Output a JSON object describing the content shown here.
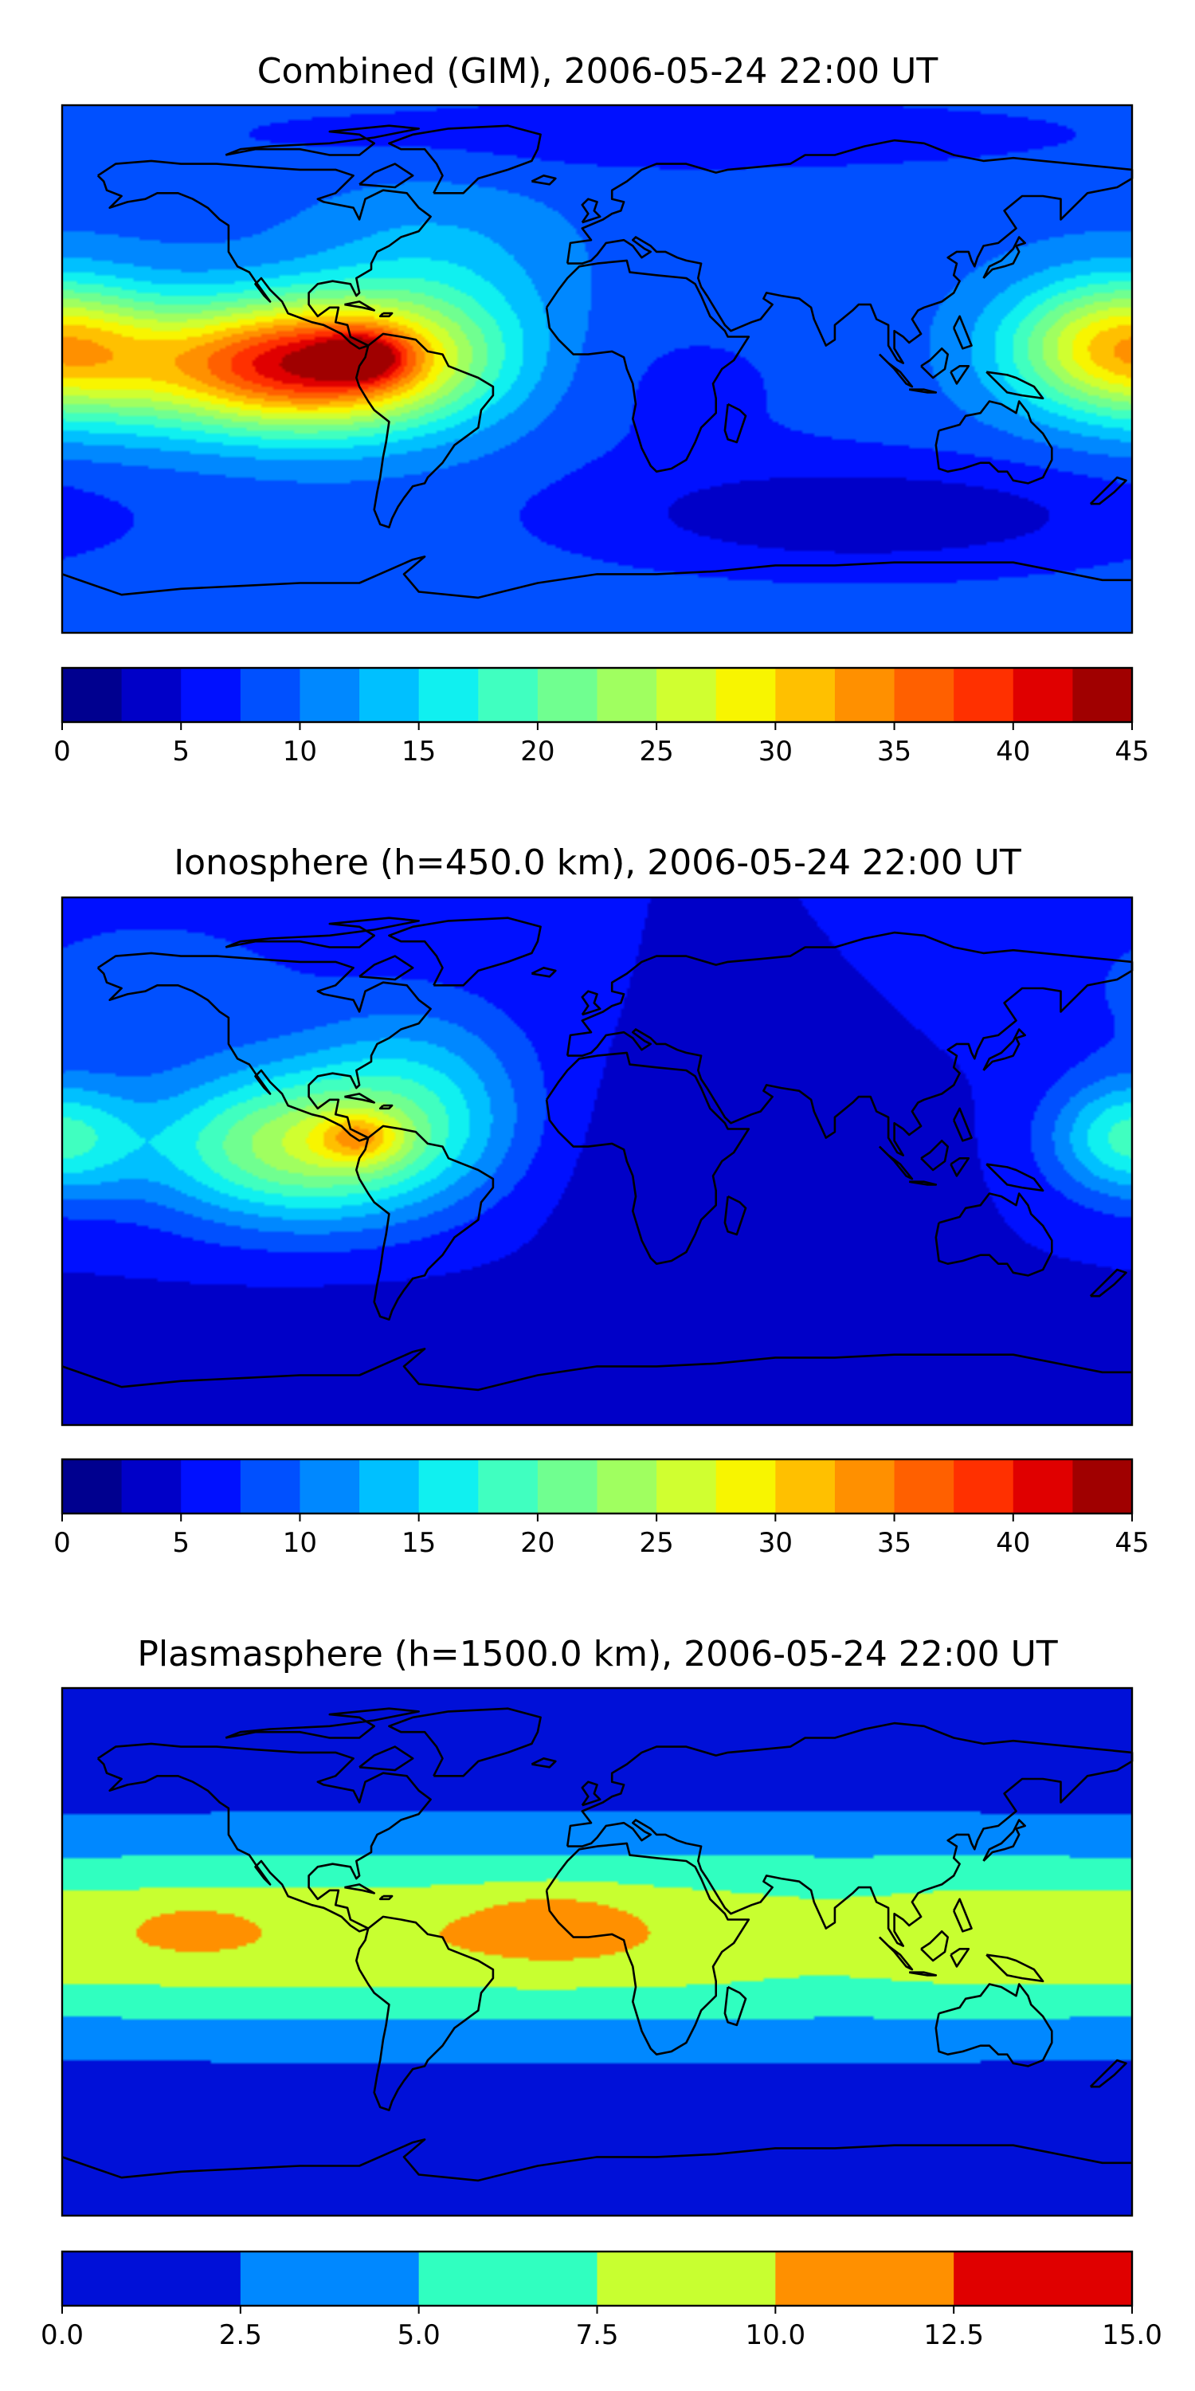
{
  "chart_data": [
    {
      "type": "heatmap",
      "title": "Combined (GIM), 2006-05-24 22:00 UT",
      "colorbar": {
        "ticks": [
          "0",
          "5",
          "10",
          "15",
          "20",
          "25",
          "30",
          "35",
          "40",
          "45"
        ],
        "levels": [
          0,
          2.5,
          5,
          7.5,
          10,
          12.5,
          15,
          17.5,
          20,
          22.5,
          25,
          27.5,
          30,
          32.5,
          35,
          37.5,
          40,
          42.5,
          45
        ],
        "range": [
          0,
          45
        ],
        "colors": [
          "#00008f",
          "#0000c8",
          "#0010ff",
          "#0050ff",
          "#0088ff",
          "#00c0ff",
          "#10f0f0",
          "#40ffc0",
          "#70ff90",
          "#a0ff60",
          "#d0ff30",
          "#f8f500",
          "#ffc000",
          "#ff9000",
          "#ff6000",
          "#ff3000",
          "#e00000",
          "#a00000"
        ]
      },
      "field": {
        "base": 9,
        "blobs": [
          {
            "lon": -92,
            "lat": 2,
            "slon": 34,
            "slat": 15,
            "amp": 25
          },
          {
            "lon": -130,
            "lat": 0,
            "slon": 42,
            "slat": 16,
            "amp": 11
          },
          {
            "lon": -78,
            "lat": 4,
            "slon": 10,
            "slat": 6,
            "amp": 10
          },
          {
            "lon": -55,
            "lat": 22,
            "slon": 30,
            "slat": 26,
            "amp": 6
          },
          {
            "lon": 175,
            "lat": 8,
            "slon": 26,
            "slat": 16,
            "amp": 19
          },
          {
            "lon": 25,
            "lat": -5,
            "slon": 40,
            "slat": 20,
            "amp": -2
          },
          {
            "lon": 90,
            "lat": -50,
            "slon": 70,
            "slat": 14,
            "amp": -6
          },
          {
            "lon": 20,
            "lat": 80,
            "slon": 120,
            "slat": 10,
            "amp": -3
          }
        ]
      }
    },
    {
      "type": "heatmap",
      "title": "Ionosphere  (h=450.0 km), 2006-05-24 22:00 UT",
      "colorbar": {
        "ticks": [
          "0",
          "5",
          "10",
          "15",
          "20",
          "25",
          "30",
          "35",
          "40",
          "45"
        ],
        "levels": [
          0,
          2.5,
          5,
          7.5,
          10,
          12.5,
          15,
          17.5,
          20,
          22.5,
          25,
          27.5,
          30,
          32.5,
          35,
          37.5,
          40,
          42.5,
          45
        ],
        "range": [
          0,
          45
        ],
        "colors": [
          "#00008f",
          "#0000c8",
          "#0010ff",
          "#0050ff",
          "#0088ff",
          "#00c0ff",
          "#10f0f0",
          "#40ffc0",
          "#70ff90",
          "#a0ff60",
          "#d0ff30",
          "#f8f500",
          "#ffc000",
          "#ff9000",
          "#ff6000",
          "#ff3000",
          "#e00000",
          "#a00000"
        ]
      },
      "field": {
        "base": 5,
        "blobs": [
          {
            "lon": -98,
            "lat": 5,
            "slon": 38,
            "slat": 18,
            "amp": 19
          },
          {
            "lon": -80,
            "lat": 8,
            "slon": 10,
            "slat": 6,
            "amp": 9
          },
          {
            "lon": -60,
            "lat": 28,
            "slon": 28,
            "slat": 22,
            "amp": 7
          },
          {
            "lon": 178,
            "lat": 8,
            "slon": 18,
            "slat": 14,
            "amp": 12
          },
          {
            "lon": 30,
            "lat": 0,
            "slon": 50,
            "slat": 25,
            "amp": -2
          },
          {
            "lon": 0,
            "lat": -60,
            "slon": 150,
            "slat": 12,
            "amp": -2
          },
          {
            "lon": -150,
            "lat": 60,
            "slon": 40,
            "slat": 20,
            "amp": 4
          }
        ]
      }
    },
    {
      "type": "heatmap",
      "title": "Plasmasphere (h=1500.0 km), 2006-05-24 22:00 UT",
      "colorbar": {
        "ticks": [
          "0.0",
          "2.5",
          "5.0",
          "7.5",
          "10.0",
          "12.5",
          "15.0"
        ],
        "levels": [
          0,
          2.5,
          5,
          7.5,
          10,
          12.5,
          15
        ],
        "range": [
          0,
          15
        ],
        "colors": [
          "#0010d8",
          "#0088ff",
          "#30ffc0",
          "#c8ff30",
          "#ff9000",
          "#e00000"
        ]
      },
      "field": {
        "base": 1.2,
        "blobs": [
          {
            "lon": 0,
            "lat": 5,
            "slon": 600,
            "slat": 22,
            "amp": 8.6
          },
          {
            "lon": -15,
            "lat": 10,
            "slon": 18,
            "slat": 8,
            "amp": 2.6
          },
          {
            "lon": -135,
            "lat": 8,
            "slon": 12,
            "slat": 5,
            "amp": 2.2
          },
          {
            "lon": 75,
            "lat": 5,
            "slon": 30,
            "slat": 12,
            "amp": -1.5
          }
        ]
      }
    }
  ],
  "colors": {
    "coastline": "#000000",
    "frame": "#000000"
  }
}
